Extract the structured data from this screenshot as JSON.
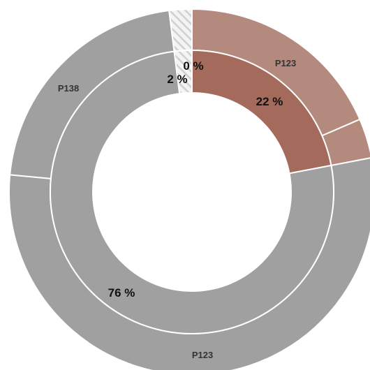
{
  "chart_data": {
    "type": "pie",
    "style": "nested-donut",
    "colors": {
      "highlight_inner": "#A46A5C",
      "highlight_outer": "#B58A7E",
      "gray": "#A0A0A0",
      "hatch": "#D0D0D0",
      "separator": "#FFFFFF",
      "label": "#111111",
      "outer_label": "#333333"
    },
    "inner_ring": {
      "slices": [
        {
          "label": "22 %",
          "value": 22,
          "color": "#A46A5C"
        },
        {
          "label": "76 %",
          "value": 76,
          "color": "#A0A0A0"
        },
        {
          "label": "2 %",
          "value": 2,
          "color": "hatch"
        },
        {
          "label": "0 %",
          "value": 0,
          "color": "hatch"
        }
      ]
    },
    "outer_ring": {
      "slices": [
        {
          "label": "P123",
          "value": 18.5,
          "color": "#B58A7E"
        },
        {
          "label": "",
          "value": 3.5,
          "color": "#B58A7E"
        },
        {
          "label": "P123",
          "value": 54.5,
          "color": "#A0A0A0"
        },
        {
          "label": "P138",
          "value": 21.5,
          "color": "#A0A0A0"
        },
        {
          "label": "",
          "value": 2,
          "color": "hatch"
        }
      ]
    }
  }
}
